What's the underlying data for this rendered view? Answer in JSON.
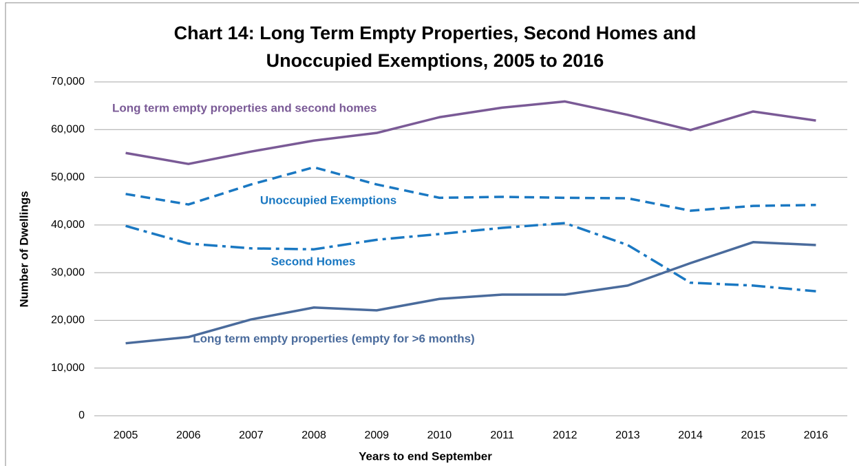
{
  "chart_data": {
    "type": "line",
    "title": [
      "Chart 14: Long Term Empty Properties, Second Homes and",
      "Unoccupied Exemptions, 2005 to 2016"
    ],
    "xlabel": "Years to end September",
    "ylabel": "Number of Dwellings",
    "categories": [
      "2005",
      "2006",
      "2007",
      "2008",
      "2009",
      "2010",
      "2011",
      "2012",
      "2013",
      "2014",
      "2015",
      "2016"
    ],
    "series": [
      {
        "name": "Long term empty properties and second homes",
        "color": "#7a5a96",
        "dash": "solid",
        "values": [
          55100,
          52800,
          55400,
          57700,
          59300,
          62600,
          64600,
          65900,
          63100,
          59900,
          63800,
          61900
        ]
      },
      {
        "name": "Unoccupied Exemptions",
        "color": "#1a78c2",
        "dash": "dashed",
        "values": [
          46500,
          44300,
          48500,
          52100,
          48500,
          45700,
          45900,
          45700,
          45600,
          43000,
          44000,
          44200
        ]
      },
      {
        "name": "Second Homes",
        "color": "#1a78c2",
        "dash": "dashdot",
        "values": [
          39800,
          36100,
          35100,
          34900,
          36900,
          38100,
          39400,
          40400,
          35800,
          27900,
          27300,
          26100
        ]
      },
      {
        "name": "Long term empty properties (empty for >6 months)",
        "color": "#4a6b9c",
        "dash": "solid",
        "values": [
          15200,
          16500,
          20200,
          22700,
          22100,
          24500,
          25400,
          25400,
          27300,
          32000,
          36400,
          35800
        ]
      }
    ],
    "ylim": [
      0,
      70000
    ],
    "yticks": [
      {
        "value": 0,
        "label": "0"
      },
      {
        "value": 10000,
        "label": "10,000"
      },
      {
        "value": 20000,
        "label": "20,000"
      },
      {
        "value": 30000,
        "label": "30,000"
      },
      {
        "value": 40000,
        "label": "40,000"
      },
      {
        "value": 50000,
        "label": "50,000"
      },
      {
        "value": 60000,
        "label": "60,000"
      },
      {
        "value": 70000,
        "label": "70,000"
      }
    ],
    "grid": true
  }
}
